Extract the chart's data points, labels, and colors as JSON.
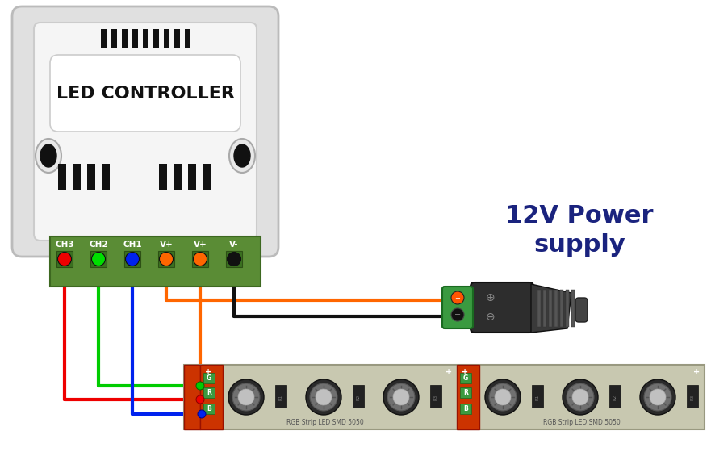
{
  "bg_color": "#ffffff",
  "power_label_line1": "12V Power",
  "power_label_line2": "supply",
  "power_label_color": "#1a237e",
  "power_label_fontsize": 22,
  "controller_label": "LED CONTROLLER",
  "controller_label_fontsize": 16,
  "terminal_labels": [
    "CH3",
    "CH2",
    "CH1",
    "V+",
    "V+",
    "V-"
  ],
  "terminal_dot_colors": [
    "#ee0000",
    "#00dd00",
    "#0022ee",
    "#ff6600",
    "#ff6600",
    "#111111"
  ],
  "wire_colors": [
    "#ee0000",
    "#00cc00",
    "#0022ee",
    "#ff6600",
    "#ff6600",
    "#111111"
  ],
  "strip_text": "RGB Strip LED SMD 5050",
  "outer_plate_color": "#e0e0e0",
  "outer_plate_border": "#bbbbbb",
  "inner_box_color": "#f5f5f5",
  "inner_box_border": "#cccccc",
  "label_box_color": "#ffffff",
  "label_box_border": "#cccccc",
  "vent_color": "#111111",
  "screw_outer_color": "#e8e8e8",
  "screw_inner_color": "#111111",
  "terminal_green": "#5a8c35",
  "terminal_dark_green": "#3d6820",
  "terminal_slot_color": "#3a7020",
  "power_body_color": "#2d2d2d",
  "power_terminal_green": "#3a9a40",
  "strip_pcb_color": "#c8c8b0",
  "strip_border_color": "#999980",
  "strip_connector_color": "#cc3300",
  "strip_led_outer": "#888888",
  "strip_led_inner": "#aaaaaa",
  "strip_resistor_color": "#222222"
}
